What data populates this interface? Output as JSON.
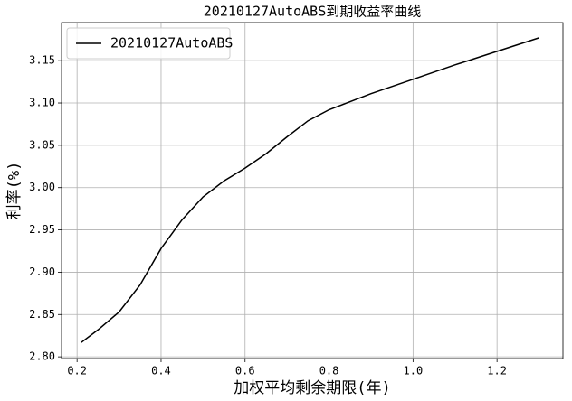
{
  "chart_data": {
    "type": "line",
    "title": "20210127AutoABS到期收益率曲线",
    "xlabel": "加权平均剩余期限(年)",
    "ylabel": "利率(%)",
    "x": [
      0.21,
      0.25,
      0.3,
      0.35,
      0.4,
      0.45,
      0.5,
      0.55,
      0.6,
      0.65,
      0.7,
      0.75,
      0.8,
      0.9,
      1.0,
      1.1,
      1.2,
      1.3
    ],
    "series": [
      {
        "name": "20210127AutoABS",
        "color": "#000000",
        "values": [
          2.817,
          2.832,
          2.853,
          2.885,
          2.928,
          2.962,
          2.989,
          3.008,
          3.023,
          3.04,
          3.06,
          3.079,
          3.092,
          3.111,
          3.128,
          3.145,
          3.161,
          3.177
        ]
      }
    ],
    "xlim": [
      0.163,
      1.357
    ],
    "ylim": [
      2.798,
      3.195
    ],
    "xticks": [
      0.2,
      0.4,
      0.6,
      0.8,
      {
        "value": 1.0,
        "label": "1.0"
      },
      1.2
    ],
    "yticks": [
      {
        "value": 2.8,
        "label": "2.80"
      },
      2.85,
      {
        "value": 2.9,
        "label": "2.90"
      },
      2.95,
      {
        "value": 3.0,
        "label": "3.00"
      },
      3.05,
      {
        "value": 3.1,
        "label": "3.10"
      },
      3.15
    ],
    "grid": true,
    "legend": "upper left"
  }
}
